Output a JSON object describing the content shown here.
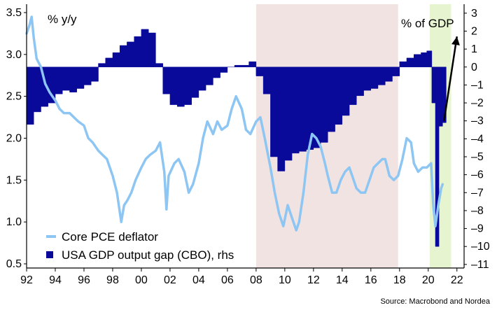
{
  "chart_data": {
    "type": "line+bar",
    "title": "",
    "left_axis_unit": "% y/y",
    "right_axis_unit": "% of GDP",
    "source": "Source: Macrobond and Nordea",
    "x_ticks": [
      "92",
      "94",
      "96",
      "98",
      "00",
      "02",
      "04",
      "06",
      "08",
      "10",
      "12",
      "14",
      "16",
      "18",
      "20",
      "22"
    ],
    "xlim": [
      1992,
      2022.5
    ],
    "left_ticks": [
      "3.5",
      "3.0",
      "2.5",
      "2.0",
      "1.5",
      "1.0",
      "0.5"
    ],
    "ylim_left": [
      0.45,
      3.6
    ],
    "right_ticks": [
      "3",
      "2",
      "1",
      "0",
      "-1",
      "-2",
      "-3",
      "-4",
      "-5",
      "-6",
      "-7",
      "-8",
      "-9",
      "-10",
      "-11"
    ],
    "ylim_right": [
      -11.2,
      3.5
    ],
    "shaded_periods": [
      {
        "start": 2008.0,
        "end": 2017.9,
        "color": "#f2e3e3"
      },
      {
        "start": 2020.1,
        "end": 2021.6,
        "color": "#e6f5cf"
      }
    ],
    "colors": {
      "pce": "#8ec6f3",
      "gap": "#0a0a9a",
      "axis": "#000000"
    },
    "series": [
      {
        "name": "Core PCE deflator",
        "axis": "left",
        "kind": "line",
        "points": [
          [
            1992.0,
            3.25
          ],
          [
            1992.2,
            3.35
          ],
          [
            1992.35,
            3.45
          ],
          [
            1992.5,
            3.2
          ],
          [
            1992.7,
            2.95
          ],
          [
            1993.0,
            2.85
          ],
          [
            1993.3,
            2.65
          ],
          [
            1993.6,
            2.55
          ],
          [
            1994.0,
            2.45
          ],
          [
            1994.3,
            2.35
          ],
          [
            1994.6,
            2.3
          ],
          [
            1995.0,
            2.3
          ],
          [
            1995.3,
            2.25
          ],
          [
            1995.6,
            2.2
          ],
          [
            1996.0,
            2.15
          ],
          [
            1996.3,
            2.0
          ],
          [
            1996.6,
            1.95
          ],
          [
            1997.0,
            1.85
          ],
          [
            1997.3,
            1.8
          ],
          [
            1997.6,
            1.75
          ],
          [
            1998.0,
            1.55
          ],
          [
            1998.3,
            1.35
          ],
          [
            1998.6,
            1.0
          ],
          [
            1998.8,
            1.2
          ],
          [
            1999.0,
            1.25
          ],
          [
            1999.3,
            1.35
          ],
          [
            1999.6,
            1.5
          ],
          [
            2000.0,
            1.65
          ],
          [
            2000.3,
            1.75
          ],
          [
            2000.6,
            1.8
          ],
          [
            2001.0,
            1.85
          ],
          [
            2001.3,
            1.95
          ],
          [
            2001.6,
            1.6
          ],
          [
            2001.75,
            1.15
          ],
          [
            2001.9,
            1.55
          ],
          [
            2002.3,
            1.7
          ],
          [
            2002.6,
            1.75
          ],
          [
            2003.0,
            1.6
          ],
          [
            2003.3,
            1.35
          ],
          [
            2003.6,
            1.45
          ],
          [
            2004.0,
            1.7
          ],
          [
            2004.3,
            2.0
          ],
          [
            2004.6,
            2.2
          ],
          [
            2005.0,
            2.05
          ],
          [
            2005.3,
            2.2
          ],
          [
            2005.6,
            2.1
          ],
          [
            2006.0,
            2.15
          ],
          [
            2006.3,
            2.35
          ],
          [
            2006.6,
            2.5
          ],
          [
            2007.0,
            2.35
          ],
          [
            2007.3,
            2.1
          ],
          [
            2007.6,
            2.05
          ],
          [
            2008.0,
            2.2
          ],
          [
            2008.3,
            2.25
          ],
          [
            2008.6,
            2.0
          ],
          [
            2009.0,
            1.65
          ],
          [
            2009.3,
            1.35
          ],
          [
            2009.6,
            1.1
          ],
          [
            2009.9,
            0.95
          ],
          [
            2010.2,
            1.2
          ],
          [
            2010.5,
            1.05
          ],
          [
            2010.8,
            0.9
          ],
          [
            2011.0,
            1.0
          ],
          [
            2011.3,
            1.35
          ],
          [
            2011.6,
            1.8
          ],
          [
            2011.9,
            2.05
          ],
          [
            2012.2,
            2.0
          ],
          [
            2012.5,
            1.9
          ],
          [
            2012.8,
            1.7
          ],
          [
            2013.0,
            1.55
          ],
          [
            2013.3,
            1.35
          ],
          [
            2013.6,
            1.35
          ],
          [
            2013.9,
            1.5
          ],
          [
            2014.2,
            1.6
          ],
          [
            2014.5,
            1.65
          ],
          [
            2014.8,
            1.5
          ],
          [
            2015.0,
            1.4
          ],
          [
            2015.3,
            1.35
          ],
          [
            2015.6,
            1.35
          ],
          [
            2015.9,
            1.5
          ],
          [
            2016.2,
            1.65
          ],
          [
            2016.5,
            1.7
          ],
          [
            2016.8,
            1.75
          ],
          [
            2017.0,
            1.75
          ],
          [
            2017.3,
            1.55
          ],
          [
            2017.6,
            1.5
          ],
          [
            2017.9,
            1.55
          ],
          [
            2018.2,
            1.75
          ],
          [
            2018.5,
            2.0
          ],
          [
            2018.8,
            1.95
          ],
          [
            2019.0,
            1.7
          ],
          [
            2019.3,
            1.6
          ],
          [
            2019.6,
            1.65
          ],
          [
            2019.9,
            1.65
          ],
          [
            2020.2,
            1.7
          ],
          [
            2020.35,
            1.2
          ],
          [
            2020.5,
            0.95
          ],
          [
            2020.7,
            1.2
          ],
          [
            2020.9,
            1.4
          ],
          [
            2021.0,
            1.45
          ]
        ]
      },
      {
        "name": "USA GDP output gap (CBO), rhs",
        "axis": "right",
        "kind": "bar",
        "points": [
          [
            1992.0,
            -3.2
          ],
          [
            1992.5,
            -2.5
          ],
          [
            1993.0,
            -2.2
          ],
          [
            1993.5,
            -2.0
          ],
          [
            1994.0,
            -1.5
          ],
          [
            1994.5,
            -1.3
          ],
          [
            1995.0,
            -1.4
          ],
          [
            1995.5,
            -1.2
          ],
          [
            1996.0,
            -1.0
          ],
          [
            1996.5,
            -0.8
          ],
          [
            1997.0,
            0.2
          ],
          [
            1997.5,
            0.5
          ],
          [
            1998.0,
            0.8
          ],
          [
            1998.5,
            1.2
          ],
          [
            1999.0,
            1.4
          ],
          [
            1999.5,
            1.7
          ],
          [
            2000.0,
            2.1
          ],
          [
            2000.5,
            1.9
          ],
          [
            2001.0,
            0.2
          ],
          [
            2001.5,
            -1.5
          ],
          [
            2002.0,
            -2.1
          ],
          [
            2002.5,
            -2.2
          ],
          [
            2003.0,
            -2.1
          ],
          [
            2003.5,
            -1.7
          ],
          [
            2004.0,
            -1.3
          ],
          [
            2004.5,
            -1.0
          ],
          [
            2005.0,
            -0.6
          ],
          [
            2005.5,
            -0.3
          ],
          [
            2006.0,
            0.0
          ],
          [
            2006.5,
            0.1
          ],
          [
            2007.0,
            0.1
          ],
          [
            2007.5,
            0.3
          ],
          [
            2008.0,
            -0.5
          ],
          [
            2008.5,
            -1.5
          ],
          [
            2009.0,
            -5.0
          ],
          [
            2009.5,
            -5.8
          ],
          [
            2010.0,
            -5.2
          ],
          [
            2010.5,
            -4.8
          ],
          [
            2011.0,
            -4.7
          ],
          [
            2011.5,
            -4.6
          ],
          [
            2012.0,
            -4.5
          ],
          [
            2012.5,
            -4.2
          ],
          [
            2013.0,
            -3.6
          ],
          [
            2013.5,
            -3.2
          ],
          [
            2014.0,
            -2.7
          ],
          [
            2014.5,
            -2.1
          ],
          [
            2015.0,
            -1.6
          ],
          [
            2015.5,
            -1.3
          ],
          [
            2016.0,
            -1.2
          ],
          [
            2016.5,
            -1.0
          ],
          [
            2017.0,
            -0.8
          ],
          [
            2017.5,
            -0.5
          ],
          [
            2018.0,
            0.3
          ],
          [
            2018.5,
            0.5
          ],
          [
            2019.0,
            0.7
          ],
          [
            2019.5,
            0.8
          ],
          [
            2019.9,
            0.9
          ],
          [
            2020.25,
            -2.0
          ],
          [
            2020.5,
            -10.0
          ],
          [
            2020.75,
            -3.3
          ],
          [
            2021.0,
            -3.1
          ]
        ]
      }
    ],
    "annotation": {
      "type": "arrow",
      "from": [
        2021.1,
        -3.0
      ],
      "to": [
        2022.0,
        1.7
      ]
    },
    "legend": {
      "placement": "bottom-left",
      "items": [
        {
          "label": "Core PCE deflator",
          "color": "#8ec6f3",
          "kind": "line"
        },
        {
          "label": "USA GDP output gap (CBO), rhs",
          "color": "#0a0a9a",
          "kind": "square"
        }
      ]
    }
  }
}
